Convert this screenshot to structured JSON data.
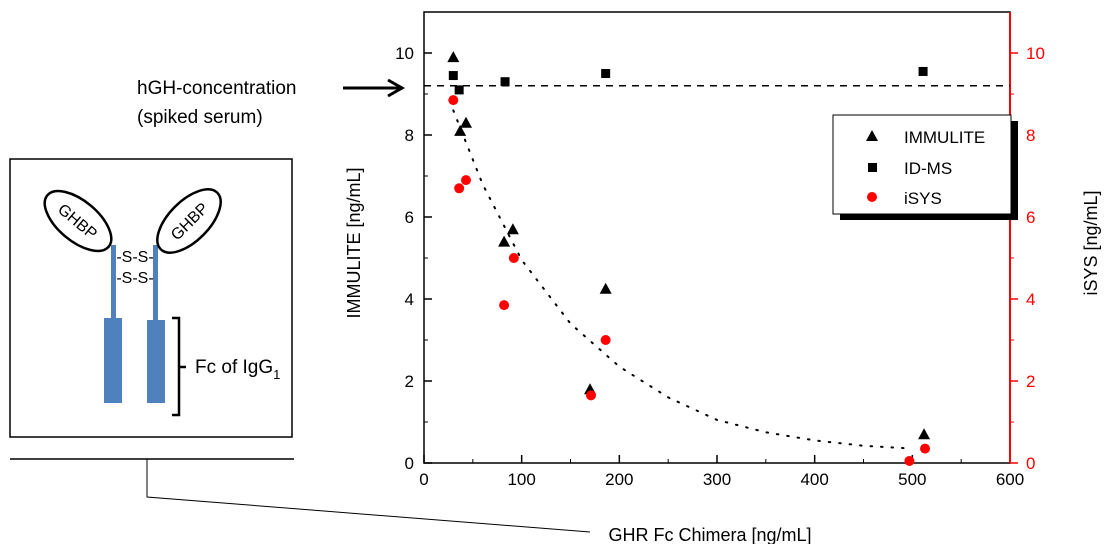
{
  "annotation": {
    "line1": "hGH-concentration",
    "line2": "(spiked serum)"
  },
  "diagram": {
    "arm_left_label": "GHBP",
    "arm_right_label": "GHBP",
    "disulfide_1": "-S-S-",
    "disulfide_2": "-S-S-",
    "fc_label": "Fc of IgG",
    "fc_subscript": "1"
  },
  "colors": {
    "antibody_blue": "#4f81bd",
    "red_axis": "#ff0000",
    "iSYS_marker": "#ff0000",
    "black": "#000000"
  },
  "chart_data": {
    "type": "scatter",
    "xlabel": "GHR Fc Chimera [ng/mL]",
    "ylabel": "IMMULITE [ng/mL]",
    "y2label": "iSYS [ng/mL]",
    "xlim": [
      0,
      600
    ],
    "ylim": [
      0,
      11
    ],
    "y2lim": [
      0,
      11
    ],
    "x_ticks": [
      0,
      100,
      200,
      300,
      400,
      500,
      600
    ],
    "y_ticks": [
      0,
      2,
      4,
      6,
      8,
      10
    ],
    "y2_ticks": [
      0,
      2,
      4,
      6,
      8,
      10
    ],
    "legend_position": "top-right",
    "reference_line": {
      "y": 9.2,
      "style": "dashed"
    },
    "series": [
      {
        "name": "IMMULITE",
        "marker": "triangle",
        "axis": "left",
        "x": [
          30,
          37,
          43,
          82,
          91,
          170,
          186,
          512
        ],
        "y": [
          9.9,
          8.1,
          8.3,
          5.4,
          5.7,
          1.8,
          4.25,
          0.7
        ]
      },
      {
        "name": "ID-MS",
        "marker": "square",
        "axis": "left",
        "x": [
          30,
          36,
          83,
          186,
          511
        ],
        "y": [
          9.45,
          9.1,
          9.3,
          9.5,
          9.55
        ]
      },
      {
        "name": "iSYS",
        "marker": "circle",
        "axis": "right",
        "x": [
          30,
          36,
          43,
          82,
          92,
          171,
          186,
          497,
          513
        ],
        "y": [
          8.85,
          6.7,
          6.9,
          3.85,
          5.0,
          1.65,
          3.0,
          0.05,
          0.35
        ]
      }
    ],
    "fit_curve": {
      "style": "dotted",
      "x": [
        30,
        60,
        100,
        150,
        200,
        250,
        300,
        350,
        400,
        450,
        500
      ],
      "y": [
        8.6,
        6.8,
        4.95,
        3.4,
        2.35,
        1.6,
        1.05,
        0.75,
        0.55,
        0.42,
        0.35
      ]
    }
  }
}
